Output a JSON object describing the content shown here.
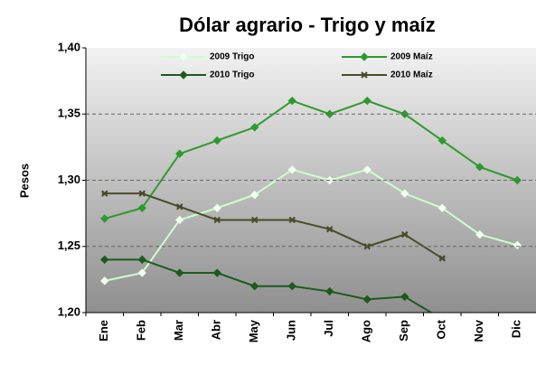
{
  "chart_data": {
    "type": "line",
    "title": "Dólar agrario  - Trigo y maíz",
    "y_label": "Pesos",
    "categories": [
      "Ene",
      "Feb",
      "Mar",
      "Abr",
      "May",
      "Jun",
      "Jul",
      "Ago",
      "Sep",
      "Oct",
      "Nov",
      "Dic"
    ],
    "series": [
      {
        "name": "2009 Trigo",
        "color": "#ccffcc",
        "values": [
          1.224,
          1.23,
          1.27,
          1.279,
          1.289,
          1.308,
          1.3,
          1.308,
          1.29,
          1.279,
          1.259,
          1.251
        ]
      },
      {
        "name": "2009 Maíz",
        "color": "#2e9a2e",
        "values": [
          1.271,
          1.279,
          1.32,
          1.33,
          1.34,
          1.36,
          1.35,
          1.36,
          1.35,
          1.33,
          1.31,
          1.3
        ]
      },
      {
        "name": "2010 Trigo",
        "color": "#1d5a1d",
        "values": [
          1.24,
          1.24,
          1.23,
          1.23,
          1.22,
          1.22,
          1.216,
          1.21,
          1.212,
          1.195,
          null,
          null
        ]
      },
      {
        "name": "2010 Maíz",
        "color": "#4a4a2a",
        "values": [
          1.29,
          1.29,
          1.28,
          1.27,
          1.27,
          1.27,
          1.263,
          1.25,
          1.259,
          1.241,
          null,
          null
        ]
      }
    ],
    "ylim": [
      1.2,
      1.4
    ],
    "yticks": [
      {
        "value": 1.2,
        "label": "1,20"
      },
      {
        "value": 1.25,
        "label": "1,25"
      },
      {
        "value": 1.3,
        "label": "1,30"
      },
      {
        "value": 1.35,
        "label": "1,35"
      },
      {
        "value": 1.4,
        "label": "1,40"
      }
    ],
    "grid": true
  }
}
